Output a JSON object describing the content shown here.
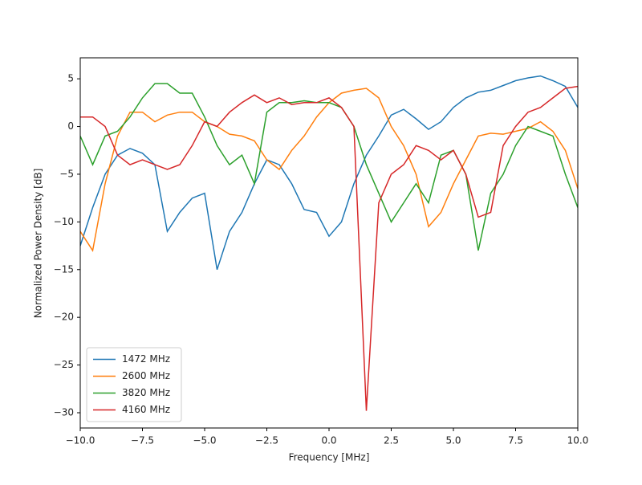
{
  "chart_data": {
    "type": "line",
    "xlabel": "Frequency [MHz]",
    "ylabel": "Normalized Power Density [dB]",
    "x": [
      -10,
      -9.5,
      -9,
      -8.5,
      -8,
      -7.5,
      -7,
      -6.5,
      -6,
      -5.5,
      -5,
      -4.5,
      -4,
      -3.5,
      -3,
      -2.5,
      -2,
      -1.5,
      -1,
      -0.5,
      0,
      0.5,
      1,
      1.5,
      2,
      2.5,
      3,
      3.5,
      4,
      4.5,
      5,
      5.5,
      6,
      6.5,
      7,
      7.5,
      8,
      8.5,
      9,
      9.5,
      10
    ],
    "series": [
      {
        "name": "1472 MHz",
        "color": "#1f77b4",
        "values": [
          -12.5,
          -8.5,
          -5,
          -3,
          -2.3,
          -2.8,
          -4,
          -11,
          -9,
          -7.5,
          -7,
          -15,
          -11,
          -9,
          -6,
          -3.5,
          -4,
          -6,
          -8.7,
          -9,
          -11.5,
          -10,
          -6,
          -3,
          -1,
          1.2,
          1.8,
          0.8,
          -0.3,
          0.5,
          2,
          3,
          3.6,
          3.8,
          4.3,
          4.8,
          5.1,
          5.3,
          4.8,
          4.2,
          2
        ]
      },
      {
        "name": "2600 MHz",
        "color": "#ff7f0e",
        "values": [
          -11,
          -13,
          -6,
          -1,
          1.5,
          1.5,
          0.5,
          1.2,
          1.5,
          1.5,
          0.5,
          0,
          -0.8,
          -1,
          -1.5,
          -3.5,
          -4.5,
          -2.5,
          -1,
          1,
          2.5,
          3.5,
          3.8,
          4,
          3,
          0,
          -2,
          -5,
          -10.5,
          -9,
          -6,
          -3.5,
          -1,
          -0.7,
          -0.8,
          -0.5,
          -0.2,
          0.5,
          -0.5,
          -2.5,
          -6.5
        ]
      },
      {
        "name": "3820 MHz",
        "color": "#2ca02c",
        "values": [
          -1,
          -4,
          -1,
          -0.5,
          1,
          3,
          4.5,
          4.5,
          3.5,
          3.5,
          1,
          -2,
          -4,
          -3,
          -6,
          1.5,
          2.5,
          2.5,
          2.7,
          2.5,
          2.5,
          2,
          0,
          -4,
          -7,
          -10,
          -8,
          -6,
          -8,
          -3,
          -2.5,
          -5,
          -13,
          -7,
          -5,
          -2,
          0,
          -0.5,
          -1,
          -5,
          -8.5
        ]
      },
      {
        "name": "4160 MHz",
        "color": "#d62728",
        "values": [
          1,
          1,
          0,
          -3,
          -4,
          -3.5,
          -4,
          -4.5,
          -4,
          -2,
          0.5,
          0,
          1.5,
          2.5,
          3.3,
          2.5,
          3,
          2.3,
          2.5,
          2.5,
          3,
          2,
          0,
          -29.8,
          -8,
          -5,
          -4,
          -2,
          -2.5,
          -3.5,
          -2.5,
          -5,
          -9.5,
          -9,
          -2,
          0,
          1.5,
          2,
          3,
          4,
          4.2
        ]
      }
    ],
    "xlim": [
      -10,
      10
    ],
    "xticks": [
      {
        "value": -10,
        "label": "−10.0"
      },
      {
        "value": -7.5,
        "label": "−7.5"
      },
      {
        "value": -5,
        "label": "−5.0"
      },
      {
        "value": -2.5,
        "label": "−2.5"
      },
      {
        "value": 0,
        "label": "0.0"
      },
      {
        "value": 2.5,
        "label": "2.5"
      },
      {
        "value": 5,
        "label": "5.0"
      },
      {
        "value": 7.5,
        "label": "7.5"
      },
      {
        "value": 10,
        "label": "10.0"
      }
    ],
    "ylim": [
      -31.6,
      7.2
    ],
    "yticks": [
      {
        "value": -30,
        "label": "−30"
      },
      {
        "value": -25,
        "label": "−25"
      },
      {
        "value": -20,
        "label": "−20"
      },
      {
        "value": -15,
        "label": "−15"
      },
      {
        "value": -10,
        "label": "−10"
      },
      {
        "value": -5,
        "label": "−5"
      },
      0,
      5
    ],
    "legend": "lower left"
  }
}
